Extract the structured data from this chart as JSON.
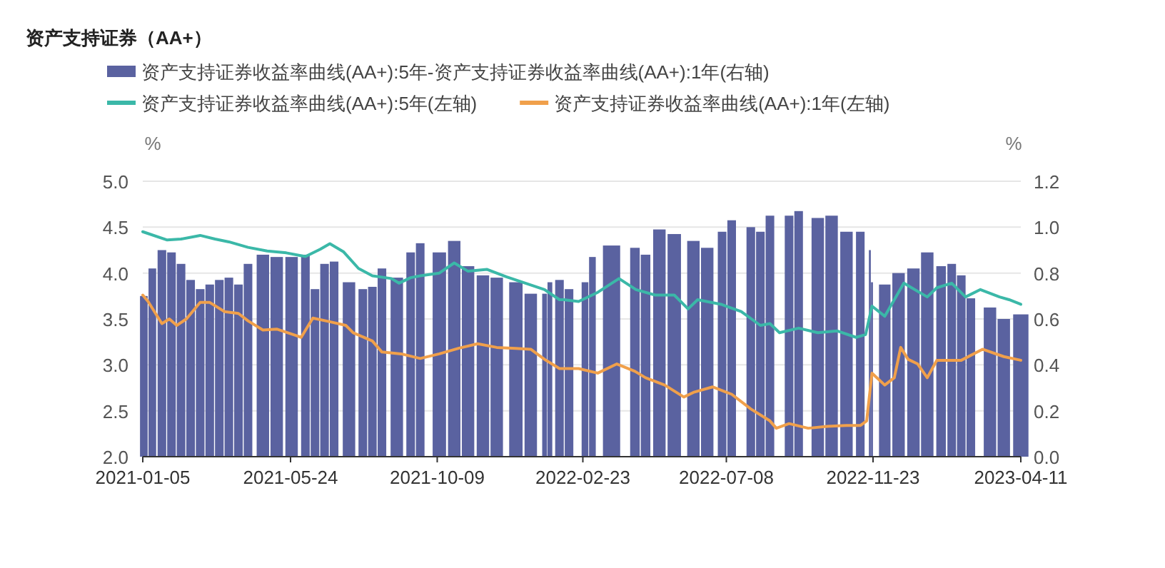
{
  "chart_data": {
    "type": "line",
    "title": "资产支持证券（AA+）",
    "ylabel": "%",
    "y2label": "%",
    "legend": "top",
    "grid": "y",
    "xlim": [
      "2021-01-05",
      "2023-04-11"
    ],
    "xticks": [
      "2021-01-05",
      "2021-05-24",
      "2021-10-09",
      "2022-02-23",
      "2022-07-08",
      "2022-11-23",
      "2023-04-11"
    ],
    "ylim": [
      2.0,
      5.0
    ],
    "yticks": [
      {
        "value": 2.0,
        "label": "2.0"
      },
      {
        "value": 2.5,
        "label": "2.5"
      },
      {
        "value": 3.0,
        "label": "3.0"
      },
      {
        "value": 3.5,
        "label": "3.5"
      },
      {
        "value": 4.0,
        "label": "4.0"
      },
      {
        "value": 4.5,
        "label": "4.5"
      },
      {
        "value": 5.0,
        "label": "5.0"
      }
    ],
    "y2lim": [
      0,
      1.2
    ],
    "y2ticks": [
      {
        "value": 0,
        "label": "0.0"
      },
      {
        "value": 0.2,
        "label": "0.2"
      },
      {
        "value": 0.4,
        "label": "0.4"
      },
      {
        "value": 0.6,
        "label": "0.6"
      },
      {
        "value": 0.8,
        "label": "0.8"
      },
      {
        "value": 1.0,
        "label": "1.0"
      },
      {
        "value": 1.2,
        "label": "1.2"
      }
    ],
    "series": [
      {
        "name": "资产支持证券收益率曲线(AA+):5年-资产支持证券收益率曲线(AA+):1年(右轴)",
        "type": "bar",
        "axis": "y2",
        "color": "#5a62a0",
        "x": [
          "2021-01-06",
          "2021-01-14",
          "2021-01-23",
          "2021-02-01",
          "2021-02-10",
          "2021-02-19",
          "2021-02-28",
          "2021-03-09",
          "2021-03-18",
          "2021-03-27",
          "2021-04-05",
          "2021-04-14",
          "2021-04-28",
          "2021-05-11",
          "2021-05-25",
          "2021-06-07",
          "2021-06-16",
          "2021-06-25",
          "2021-07-04",
          "2021-07-18",
          "2021-07-31",
          "2021-08-09",
          "2021-08-18",
          "2021-09-01",
          "2021-09-14",
          "2021-09-23",
          "2021-10-11",
          "2021-10-25",
          "2021-11-07",
          "2021-11-21",
          "2021-12-04",
          "2021-12-22",
          "2022-01-05",
          "2022-01-18",
          "2022-01-23",
          "2022-02-01",
          "2022-02-10",
          "2022-02-25",
          "2022-03-04",
          "2022-03-22",
          "2022-04-13",
          "2022-04-23",
          "2022-05-06",
          "2022-05-20",
          "2022-06-07",
          "2022-06-20",
          "2022-07-04",
          "2022-07-13",
          "2022-07-31",
          "2022-08-09",
          "2022-08-18",
          "2022-09-05",
          "2022-09-14",
          "2022-10-02",
          "2022-10-15",
          "2022-10-29",
          "2022-11-11",
          "2022-11-20",
          "2022-11-22",
          "2022-12-04",
          "2022-12-17",
          "2022-12-31",
          "2023-01-13",
          "2023-01-26",
          "2023-02-05",
          "2023-02-14",
          "2023-02-23",
          "2023-03-13",
          "2023-03-26",
          "2023-04-11"
        ],
        "values": [
          0.7,
          0.82,
          0.9,
          0.89,
          0.84,
          0.77,
          0.73,
          0.75,
          0.77,
          0.78,
          0.75,
          0.84,
          0.88,
          0.87,
          0.87,
          0.88,
          0.73,
          0.84,
          0.85,
          0.76,
          0.73,
          0.74,
          0.82,
          0.78,
          0.89,
          0.93,
          0.89,
          0.94,
          0.83,
          0.79,
          0.78,
          0.76,
          0.71,
          0.71,
          0.76,
          0.77,
          0.73,
          0.76,
          0.87,
          0.92,
          0.91,
          0.88,
          0.99,
          0.97,
          0.94,
          0.91,
          0.98,
          1.03,
          1.0,
          0.98,
          1.05,
          1.05,
          1.07,
          1.04,
          1.05,
          0.98,
          0.98,
          0.9,
          0.76,
          0.75,
          0.8,
          0.82,
          0.89,
          0.83,
          0.84,
          0.79,
          0.69,
          0.65,
          0.6,
          0.62
        ]
      },
      {
        "name": "资产支持证券收益率曲线(AA+):5年(左轴)",
        "color": "#3bb8a8",
        "x": [
          "2021-01-05",
          "2021-01-28",
          "2021-02-10",
          "2021-02-28",
          "2021-03-14",
          "2021-03-27",
          "2021-04-14",
          "2021-05-02",
          "2021-05-20",
          "2021-06-07",
          "2021-06-21",
          "2021-06-30",
          "2021-07-13",
          "2021-07-27",
          "2021-08-09",
          "2021-08-27",
          "2021-09-03",
          "2021-09-14",
          "2021-09-23",
          "2021-10-11",
          "2021-10-25",
          "2021-11-07",
          "2021-11-25",
          "2021-12-13",
          "2021-12-31",
          "2022-01-18",
          "2022-02-01",
          "2022-02-05",
          "2022-02-19",
          "2022-03-09",
          "2022-03-29",
          "2022-04-14",
          "2022-05-02",
          "2022-05-20",
          "2022-06-02",
          "2022-06-11",
          "2022-07-03",
          "2022-07-22",
          "2022-08-09",
          "2022-08-18",
          "2022-08-27",
          "2022-09-14",
          "2022-10-02",
          "2022-10-20",
          "2022-11-07",
          "2022-11-16",
          "2022-11-22",
          "2022-12-04",
          "2022-12-22",
          "2023-01-13",
          "2023-01-22",
          "2023-02-05",
          "2023-02-18",
          "2023-03-04",
          "2023-03-22",
          "2023-03-31",
          "2023-04-11"
        ],
        "values": [
          4.45,
          4.36,
          4.37,
          4.41,
          4.37,
          4.34,
          4.28,
          4.24,
          4.22,
          4.18,
          4.26,
          4.32,
          4.23,
          4.05,
          3.97,
          3.94,
          3.89,
          3.95,
          3.97,
          4.0,
          4.11,
          4.02,
          4.04,
          3.96,
          3.89,
          3.82,
          3.71,
          3.71,
          3.69,
          3.79,
          3.94,
          3.82,
          3.76,
          3.76,
          3.61,
          3.71,
          3.66,
          3.58,
          3.43,
          3.45,
          3.35,
          3.4,
          3.35,
          3.37,
          3.3,
          3.33,
          3.64,
          3.53,
          3.89,
          3.74,
          3.84,
          3.89,
          3.74,
          3.82,
          3.74,
          3.71,
          3.66
        ]
      },
      {
        "name": "资产支持证券收益率曲线(AA+):1年(左轴)",
        "color": "#f0a04b",
        "x": [
          "2021-01-05",
          "2021-01-10",
          "2021-01-23",
          "2021-01-30",
          "2021-02-06",
          "2021-02-15",
          "2021-02-28",
          "2021-03-09",
          "2021-03-23",
          "2021-04-05",
          "2021-04-14",
          "2021-04-28",
          "2021-05-11",
          "2021-05-29",
          "2021-06-03",
          "2021-06-14",
          "2021-06-30",
          "2021-07-15",
          "2021-07-22",
          "2021-08-09",
          "2021-08-18",
          "2021-09-05",
          "2021-09-23",
          "2021-10-11",
          "2021-10-29",
          "2021-11-16",
          "2021-12-04",
          "2021-12-22",
          "2022-01-05",
          "2022-01-18",
          "2022-02-01",
          "2022-02-19",
          "2022-03-09",
          "2022-03-27",
          "2022-04-13",
          "2022-04-23",
          "2022-05-11",
          "2022-05-29",
          "2022-06-07",
          "2022-06-25",
          "2022-07-13",
          "2022-07-31",
          "2022-08-18",
          "2022-08-24",
          "2022-09-05",
          "2022-09-23",
          "2022-10-11",
          "2022-10-29",
          "2022-11-11",
          "2022-11-17",
          "2022-11-22",
          "2022-12-04",
          "2022-12-13",
          "2022-12-19",
          "2022-12-26",
          "2023-01-04",
          "2023-01-13",
          "2023-01-22",
          "2023-02-14",
          "2023-03-06",
          "2023-03-26",
          "2023-04-11"
        ],
        "values": [
          3.76,
          3.69,
          3.45,
          3.5,
          3.43,
          3.5,
          3.68,
          3.68,
          3.58,
          3.56,
          3.48,
          3.38,
          3.39,
          3.32,
          3.3,
          3.51,
          3.47,
          3.43,
          3.35,
          3.26,
          3.14,
          3.12,
          3.07,
          3.12,
          3.18,
          3.23,
          3.19,
          3.18,
          3.17,
          3.06,
          2.96,
          2.96,
          2.91,
          3.01,
          2.93,
          2.86,
          2.78,
          2.65,
          2.7,
          2.76,
          2.68,
          2.52,
          2.39,
          2.31,
          2.36,
          2.31,
          2.33,
          2.34,
          2.34,
          2.39,
          2.91,
          2.78,
          2.86,
          3.19,
          3.06,
          3.01,
          2.86,
          3.05,
          3.05,
          3.17,
          3.09,
          3.05
        ]
      }
    ]
  }
}
